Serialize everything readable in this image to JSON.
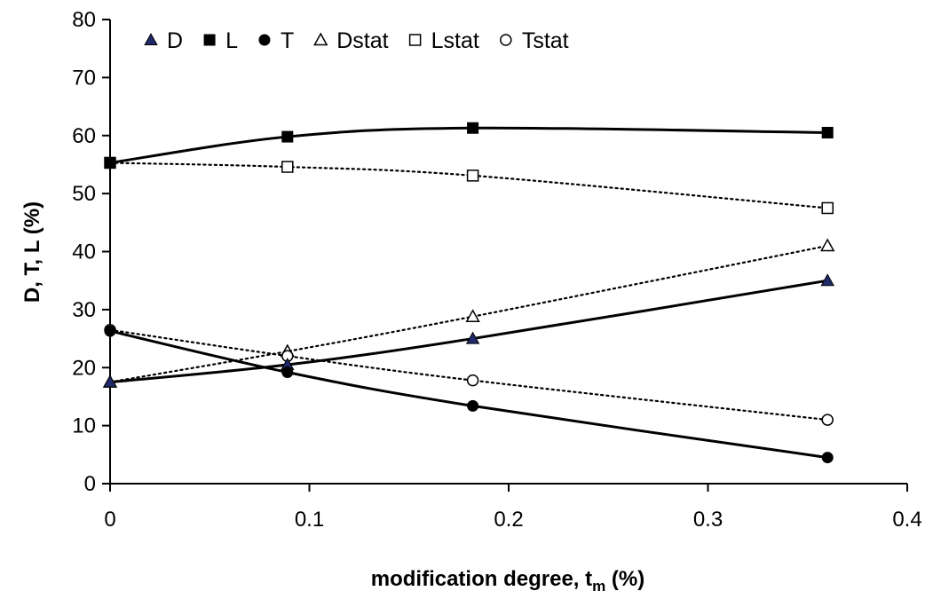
{
  "chart_data": {
    "type": "line",
    "title": "",
    "xlabel": {
      "main": "modification degree, t",
      "sub": "m",
      "suffix": " (%)"
    },
    "ylabel": "D, T, L (%)",
    "xlim": [
      0,
      0.4
    ],
    "ylim": [
      0,
      80
    ],
    "xticks": [
      0,
      0.1,
      0.2,
      0.3,
      0.4
    ],
    "xtick_labels": [
      "0",
      "0.1",
      "0.2",
      "0.3",
      "0.4"
    ],
    "yticks": [
      0,
      10,
      20,
      30,
      40,
      50,
      60,
      70,
      80
    ],
    "ytick_labels": [
      "0",
      "10",
      "20",
      "30",
      "40",
      "50",
      "60",
      "70",
      "80"
    ],
    "grid": false,
    "legend_position": "top-left",
    "x": [
      0,
      0.089,
      0.182,
      0.36
    ],
    "series": [
      {
        "name": "D",
        "values": [
          17.5,
          20.5,
          25.0,
          35.0
        ],
        "marker": "triangle",
        "fill": "#1f2a6b",
        "line": "solid"
      },
      {
        "name": "L",
        "values": [
          55.3,
          59.8,
          61.3,
          60.5
        ],
        "marker": "square",
        "fill": "#000000",
        "line": "solid"
      },
      {
        "name": "T",
        "values": [
          26.3,
          19.2,
          13.4,
          4.5
        ],
        "marker": "circle",
        "fill": "#000000",
        "line": "solid"
      },
      {
        "name": "Dstat",
        "values": [
          17.5,
          22.8,
          28.8,
          41.0
        ],
        "marker": "triangle",
        "fill": "#ffffff",
        "line": "dotted"
      },
      {
        "name": "Lstat",
        "values": [
          55.3,
          54.6,
          53.1,
          47.5
        ],
        "marker": "square",
        "fill": "#ffffff",
        "line": "dotted"
      },
      {
        "name": "Tstat",
        "values": [
          26.5,
          22.0,
          17.8,
          11.0
        ],
        "marker": "circle",
        "fill": "#ffffff",
        "line": "dotted"
      }
    ]
  }
}
